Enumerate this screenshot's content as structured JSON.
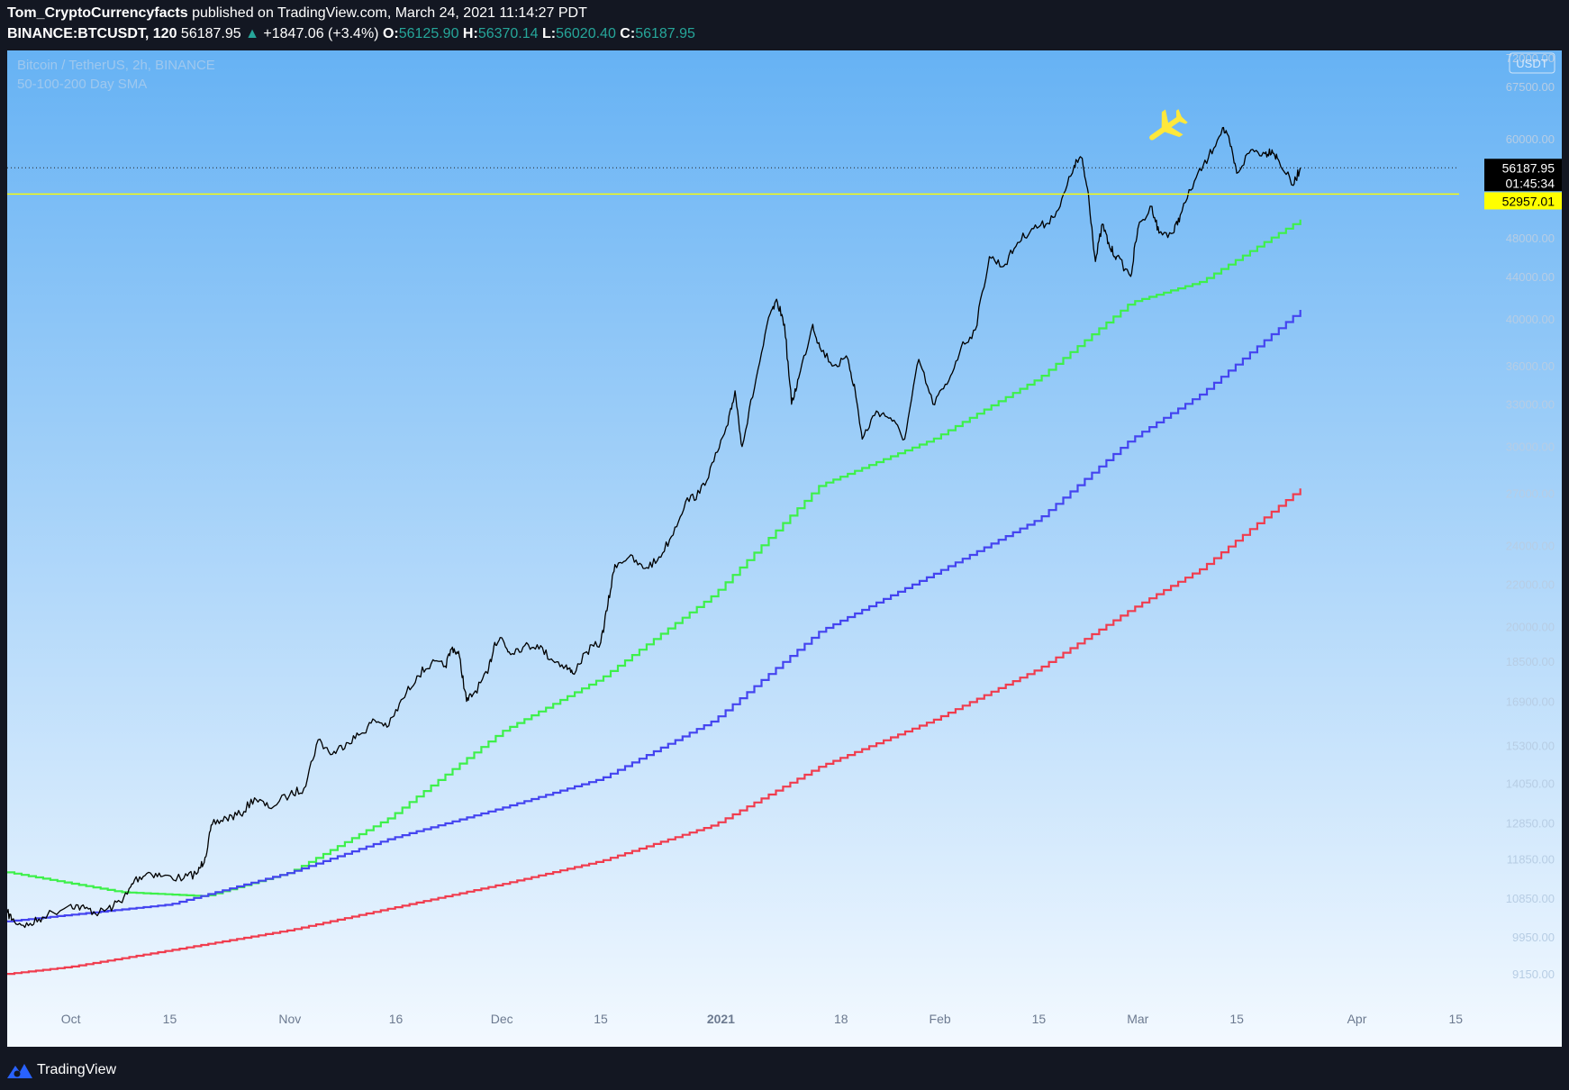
{
  "header": {
    "publisher": "Tom_CryptoCurrencyfacts",
    "published_text": "published on TradingView.com, March 24, 2021 11:14:27 PDT",
    "symbol": "BINANCE:BTCUSDT, 120",
    "last": "56187.95",
    "change_arrow": "▲",
    "change": "+1847.06 (+3.4%)",
    "o_label": "O:",
    "o_value": "56125.90",
    "h_label": "H:",
    "h_value": "56370.14",
    "l_label": "L:",
    "l_value": "56020.40",
    "c_label": "C:",
    "c_value": "56187.95"
  },
  "footer": {
    "brand": "TradingView",
    "logo_icon": "tradingview-logo-icon"
  },
  "chart_data": {
    "type": "line",
    "title": "Bitcoin / TetherUS, 2h, BINANCE",
    "subtitle": "50-100-200 Day SMA",
    "currency_badge": "USDT",
    "scale": "log",
    "ylim": [
      8700,
      72000
    ],
    "xlim": [
      "2020-09-22",
      "2021-04-30"
    ],
    "grid": false,
    "background_gradient": [
      "#66b2f4",
      "#f3f9ff"
    ],
    "y_ticks": [
      "9150.00",
      "9950.00",
      "10850.00",
      "11850.00",
      "12850.00",
      "14050.00",
      "15300.00",
      "16900.00",
      "18500.00",
      "20000.00",
      "22000.00",
      "24000.00",
      "27000.00",
      "30000.00",
      "33000.00",
      "36000.00",
      "40000.00",
      "44000.00",
      "48000.00",
      "60000.00",
      "67500.00",
      "72000.00"
    ],
    "x_ticks": [
      {
        "label": "Oct",
        "date": "2020-10-01"
      },
      {
        "label": "15",
        "date": "2020-10-15"
      },
      {
        "label": "Nov",
        "date": "2020-11-01"
      },
      {
        "label": "16",
        "date": "2020-11-16"
      },
      {
        "label": "Dec",
        "date": "2020-12-01"
      },
      {
        "label": "15",
        "date": "2020-12-15"
      },
      {
        "label": "2021",
        "date": "2021-01-01",
        "bold": true
      },
      {
        "label": "18",
        "date": "2021-01-18"
      },
      {
        "label": "Feb",
        "date": "2021-02-01"
      },
      {
        "label": "15",
        "date": "2021-02-15"
      },
      {
        "label": "Mar",
        "date": "2021-03-01"
      },
      {
        "label": "15",
        "date": "2021-03-15"
      },
      {
        "label": "Apr",
        "date": "2021-04-01"
      },
      {
        "label": "15",
        "date": "2021-04-15"
      }
    ],
    "price_series": {
      "color": "#000000",
      "points": [
        [
          "2020-09-22",
          10500
        ],
        [
          "2020-09-23",
          10300
        ],
        [
          "2020-09-25",
          10200
        ],
        [
          "2020-09-27",
          10400
        ],
        [
          "2020-10-01",
          10700
        ],
        [
          "2020-10-03",
          10600
        ],
        [
          "2020-10-05",
          10500
        ],
        [
          "2020-10-07",
          10650
        ],
        [
          "2020-10-09",
          10950
        ],
        [
          "2020-10-10",
          11300
        ],
        [
          "2020-10-12",
          11500
        ],
        [
          "2020-10-14",
          11400
        ],
        [
          "2020-10-17",
          11350
        ],
        [
          "2020-10-19",
          11500
        ],
        [
          "2020-10-20",
          11900
        ],
        [
          "2020-10-21",
          12800
        ],
        [
          "2020-10-23",
          13000
        ],
        [
          "2020-10-25",
          13100
        ],
        [
          "2020-10-27",
          13600
        ],
        [
          "2020-10-29",
          13300
        ],
        [
          "2020-11-01",
          13700
        ],
        [
          "2020-11-03",
          13900
        ],
        [
          "2020-11-05",
          15500
        ],
        [
          "2020-11-07",
          15000
        ],
        [
          "2020-11-09",
          15400
        ],
        [
          "2020-11-11",
          15700
        ],
        [
          "2020-11-13",
          16200
        ],
        [
          "2020-11-15",
          16000
        ],
        [
          "2020-11-17",
          17000
        ],
        [
          "2020-11-19",
          17900
        ],
        [
          "2020-11-21",
          18400
        ],
        [
          "2020-11-23",
          18300
        ],
        [
          "2020-11-24",
          19100
        ],
        [
          "2020-11-25",
          18700
        ],
        [
          "2020-11-26",
          16900
        ],
        [
          "2020-11-27",
          17200
        ],
        [
          "2020-11-29",
          18000
        ],
        [
          "2020-11-30",
          19300
        ],
        [
          "2020-12-01",
          19500
        ],
        [
          "2020-12-02",
          18900
        ],
        [
          "2020-12-04",
          19100
        ],
        [
          "2020-12-06",
          19200
        ],
        [
          "2020-12-08",
          18600
        ],
        [
          "2020-12-10",
          18300
        ],
        [
          "2020-12-11",
          18000
        ],
        [
          "2020-12-13",
          18900
        ],
        [
          "2020-12-15",
          19300
        ],
        [
          "2020-12-16",
          21000
        ],
        [
          "2020-12-17",
          23000
        ],
        [
          "2020-12-19",
          23400
        ],
        [
          "2020-12-21",
          22800
        ],
        [
          "2020-12-23",
          23200
        ],
        [
          "2020-12-25",
          24500
        ],
        [
          "2020-12-27",
          26500
        ],
        [
          "2020-12-29",
          27000
        ],
        [
          "2020-12-31",
          29000
        ],
        [
          "2021-01-02",
          31500
        ],
        [
          "2021-01-03",
          34000
        ],
        [
          "2021-01-04",
          30000
        ],
        [
          "2021-01-06",
          35000
        ],
        [
          "2021-01-08",
          40500
        ],
        [
          "2021-01-09",
          41500
        ],
        [
          "2021-01-10",
          39500
        ],
        [
          "2021-01-11",
          33000
        ],
        [
          "2021-01-12",
          35000
        ],
        [
          "2021-01-14",
          39500
        ],
        [
          "2021-01-15",
          37500
        ],
        [
          "2021-01-17",
          36000
        ],
        [
          "2021-01-19",
          36500
        ],
        [
          "2021-01-20",
          34000
        ],
        [
          "2021-01-21",
          30500
        ],
        [
          "2021-01-23",
          32500
        ],
        [
          "2021-01-25",
          32000
        ],
        [
          "2021-01-27",
          30500
        ],
        [
          "2021-01-29",
          36500
        ],
        [
          "2021-01-31",
          33000
        ],
        [
          "2021-02-02",
          34500
        ],
        [
          "2021-02-04",
          37500
        ],
        [
          "2021-02-06",
          39000
        ],
        [
          "2021-02-08",
          46000
        ],
        [
          "2021-02-10",
          45000
        ],
        [
          "2021-02-12",
          47500
        ],
        [
          "2021-02-14",
          49000
        ],
        [
          "2021-02-16",
          49500
        ],
        [
          "2021-02-18",
          51500
        ],
        [
          "2021-02-20",
          56500
        ],
        [
          "2021-02-21",
          57500
        ],
        [
          "2021-02-22",
          53000
        ],
        [
          "2021-02-23",
          45500
        ],
        [
          "2021-02-24",
          49500
        ],
        [
          "2021-02-25",
          47000
        ],
        [
          "2021-02-26",
          46000
        ],
        [
          "2021-02-28",
          44000
        ],
        [
          "2021-03-01",
          49000
        ],
        [
          "2021-03-03",
          51500
        ],
        [
          "2021-03-04",
          48500
        ],
        [
          "2021-03-06",
          48500
        ],
        [
          "2021-03-07",
          50500
        ],
        [
          "2021-03-09",
          54500
        ],
        [
          "2021-03-11",
          57500
        ],
        [
          "2021-03-13",
          61500
        ],
        [
          "2021-03-14",
          59500
        ],
        [
          "2021-03-15",
          55500
        ],
        [
          "2021-03-17",
          58500
        ],
        [
          "2021-03-19",
          58000
        ],
        [
          "2021-03-20",
          58500
        ],
        [
          "2021-03-21",
          57000
        ],
        [
          "2021-03-23",
          54000
        ],
        [
          "2021-03-24",
          56187.95
        ]
      ]
    },
    "series": [
      {
        "color": "#3df04a",
        "points": [
          [
            "2020-09-22",
            11500
          ],
          [
            "2020-10-08",
            11000
          ],
          [
            "2020-10-20",
            10900
          ],
          [
            "2020-11-01",
            11500
          ],
          [
            "2020-11-15",
            13000
          ],
          [
            "2020-12-01",
            15800
          ],
          [
            "2020-12-15",
            17800
          ],
          [
            "2020-12-31",
            21500
          ],
          [
            "2021-01-15",
            27500
          ],
          [
            "2021-01-31",
            30500
          ],
          [
            "2021-02-15",
            35000
          ],
          [
            "2021-02-28",
            41500
          ],
          [
            "2021-03-10",
            43500
          ],
          [
            "2021-03-24",
            50000
          ]
        ]
      },
      {
        "color": "#4444f0",
        "points": [
          [
            "2020-09-22",
            10300
          ],
          [
            "2020-10-15",
            10700
          ],
          [
            "2020-11-01",
            11500
          ],
          [
            "2020-11-15",
            12400
          ],
          [
            "2020-12-01",
            13300
          ],
          [
            "2020-12-15",
            14200
          ],
          [
            "2020-12-31",
            16200
          ],
          [
            "2021-01-15",
            19800
          ],
          [
            "2021-01-31",
            22500
          ],
          [
            "2021-02-15",
            25500
          ],
          [
            "2021-02-28",
            30500
          ],
          [
            "2021-03-10",
            33800
          ],
          [
            "2021-03-24",
            40800
          ]
        ]
      },
      {
        "color": "#f03c4e",
        "points": [
          [
            "2020-09-22",
            9150
          ],
          [
            "2020-10-01",
            9300
          ],
          [
            "2020-10-15",
            9650
          ],
          [
            "2020-11-01",
            10100
          ],
          [
            "2020-11-15",
            10600
          ],
          [
            "2020-12-01",
            11200
          ],
          [
            "2020-12-15",
            11800
          ],
          [
            "2020-12-31",
            12800
          ],
          [
            "2021-01-15",
            14600
          ],
          [
            "2021-01-31",
            16200
          ],
          [
            "2021-02-15",
            18200
          ],
          [
            "2021-02-28",
            20800
          ],
          [
            "2021-03-10",
            22800
          ],
          [
            "2021-03-24",
            27300
          ]
        ]
      }
    ],
    "price_line": {
      "value": 56187.95,
      "label": "56187.95",
      "countdown": "01:45:34"
    },
    "horizontal_line": {
      "value": 52957.01,
      "label": "52957.01",
      "color": "#ffff00"
    },
    "annotation": {
      "icon": "airplane-icon",
      "date": "2021-03-05",
      "value": 61500,
      "color": "#ffe83b"
    }
  }
}
